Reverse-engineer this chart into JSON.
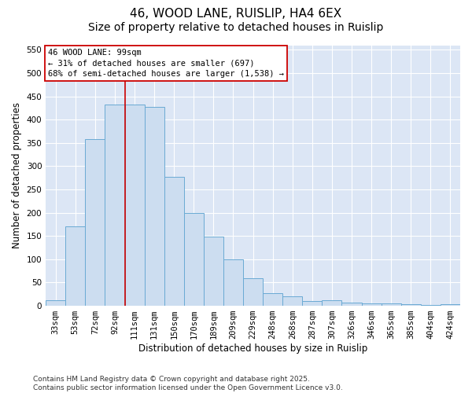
{
  "title1": "46, WOOD LANE, RUISLIP, HA4 6EX",
  "title2": "Size of property relative to detached houses in Ruislip",
  "xlabel": "Distribution of detached houses by size in Ruislip",
  "ylabel": "Number of detached properties",
  "categories": [
    "33sqm",
    "53sqm",
    "72sqm",
    "92sqm",
    "111sqm",
    "131sqm",
    "150sqm",
    "170sqm",
    "189sqm",
    "209sqm",
    "229sqm",
    "248sqm",
    "268sqm",
    "287sqm",
    "307sqm",
    "326sqm",
    "346sqm",
    "365sqm",
    "385sqm",
    "404sqm",
    "424sqm"
  ],
  "values": [
    12,
    170,
    358,
    432,
    432,
    428,
    277,
    200,
    148,
    99,
    60,
    27,
    20,
    11,
    12,
    7,
    5,
    5,
    3,
    2,
    3
  ],
  "bar_color": "#ccddf0",
  "bar_edge_color": "#6aaad4",
  "plot_bg_color": "#dce6f5",
  "fig_bg_color": "#ffffff",
  "grid_color": "#ffffff",
  "vline_x": 3.5,
  "vline_color": "#cc0000",
  "annotation_line1": "46 WOOD LANE: 99sqm",
  "annotation_line2": "← 31% of detached houses are smaller (697)",
  "annotation_line3": "68% of semi-detached houses are larger (1,538) →",
  "annotation_box_color": "#cc0000",
  "ylim": [
    0,
    560
  ],
  "yticks": [
    0,
    50,
    100,
    150,
    200,
    250,
    300,
    350,
    400,
    450,
    500,
    550
  ],
  "footer1": "Contains HM Land Registry data © Crown copyright and database right 2025.",
  "footer2": "Contains public sector information licensed under the Open Government Licence v3.0.",
  "title1_fontsize": 11,
  "title2_fontsize": 10,
  "annotation_fontsize": 7.5,
  "axis_label_fontsize": 8.5,
  "tick_fontsize": 7.5,
  "footer_fontsize": 6.5
}
